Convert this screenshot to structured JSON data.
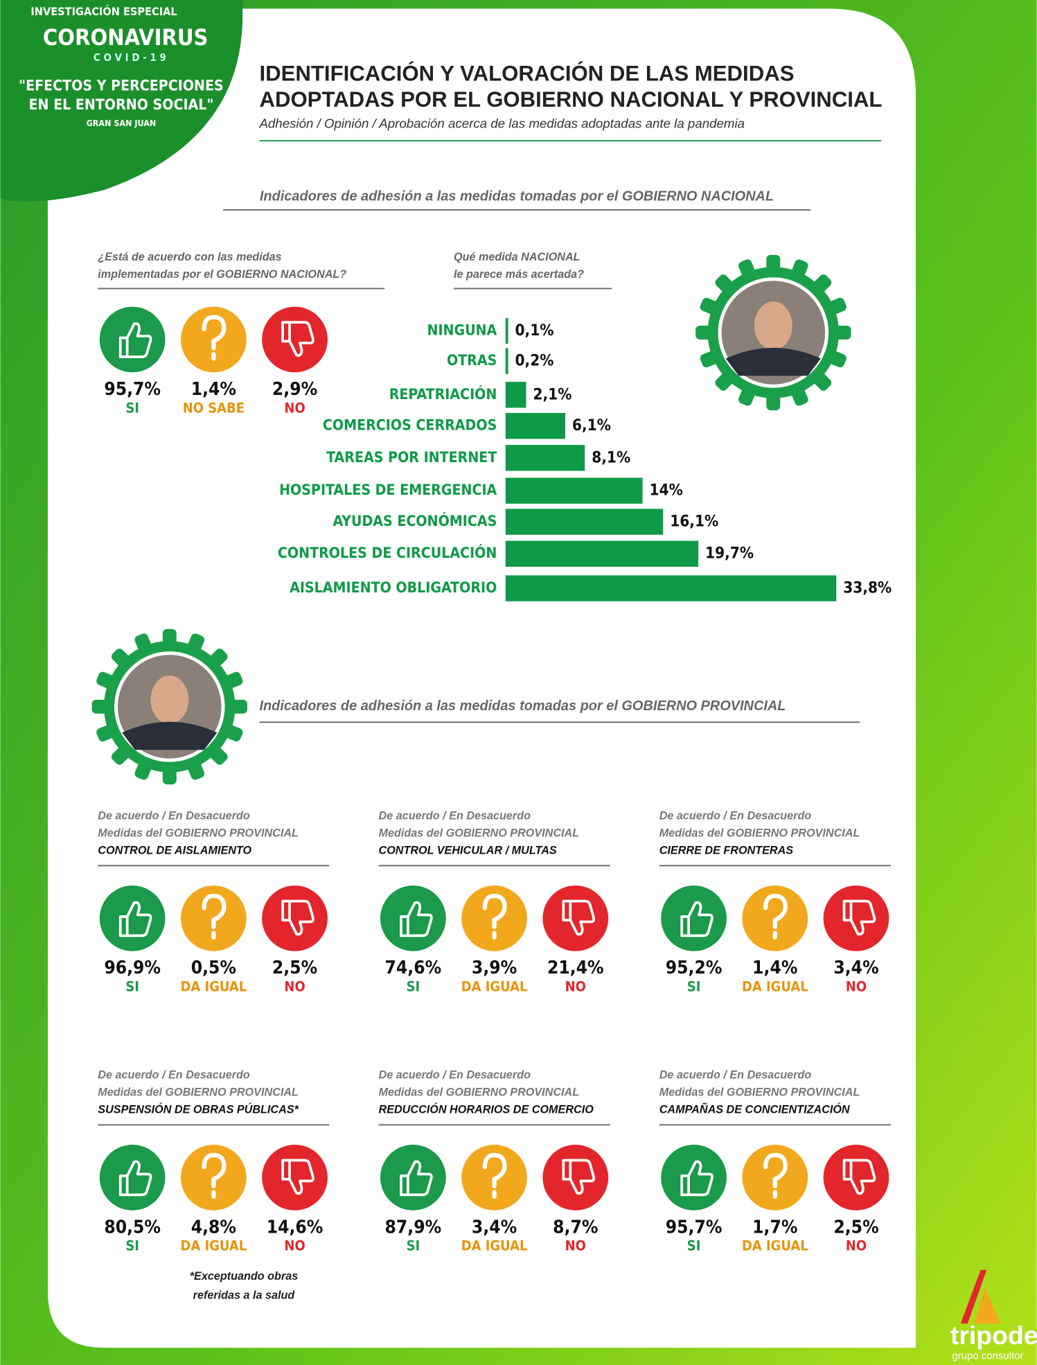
{
  "header": {
    "badge": [
      "INVESTIGACIÓN ESPECIAL",
      "CORONAVIRUS",
      "C O V I D - 1 9",
      "\"EFECTOS Y PERCEPCIONES",
      "EN EL ENTORNO SOCIAL\"",
      "GRAN SAN JUAN"
    ],
    "title": [
      "IDENTIFICACIÓN Y VALORACIÓN DE LAS MEDIDAS",
      "ADOPTADAS POR EL GOBIERNO NACIONAL Y PROVINCIAL"
    ],
    "subtitle": "Adhesión / Opinión / Aprobación acerca de las medidas adoptadas ante  la pandemia"
  },
  "national": {
    "heading": "Indicadores de adhesión a las medidas tomadas por el GOBIERNO NACIONAL",
    "poll": {
      "question": [
        "¿Está de acuerdo con las medidas",
        "implementadas por el GOBIERNO NACIONAL?"
      ],
      "answers": [
        {
          "value": "95,7%",
          "label": "SI"
        },
        {
          "value": "1,4%",
          "label": "NO SABE"
        },
        {
          "value": "2,9%",
          "label": "NO"
        }
      ]
    }
  },
  "chart_data": {
    "type": "bar",
    "orientation": "horizontal",
    "title": [
      "Qué medida NACIONAL",
      "le parece más acertada?"
    ],
    "categories": [
      "NINGUNA",
      "OTRAS",
      "REPATRIACIÓN",
      "COMERCIOS CERRADOS",
      "TAREAS POR INTERNET",
      "HOSPITALES DE EMERGENCIA",
      "AYUDAS ECONÓMICAS",
      "CONTROLES DE CIRCULACIÓN",
      "AISLAMIENTO OBLIGATORIO"
    ],
    "values": [
      0.1,
      0.2,
      2.1,
      6.1,
      8.1,
      14,
      16.1,
      19.7,
      33.8
    ],
    "value_labels": [
      "0,1%",
      "0,2%",
      "2,1%",
      "6,1%",
      "8,1%",
      "14%",
      "16,1%",
      "19,7%",
      "33,8%"
    ],
    "color": "#0e9a47"
  },
  "provincial": {
    "heading": "Indicadores de adhesión a las medidas tomadas por el GOBIERNO PROVINCIAL",
    "polls": [
      {
        "intro": [
          "De acuerdo / En Desacuerdo",
          "Medidas del GOBIERNO PROVINCIAL"
        ],
        "measure": "CONTROL DE AISLAMIENTO",
        "answers": [
          {
            "value": "96,9%",
            "label": "SI"
          },
          {
            "value": "0,5%",
            "label": "DA IGUAL"
          },
          {
            "value": "2,5%",
            "label": "NO"
          }
        ]
      },
      {
        "intro": [
          "De acuerdo / En Desacuerdo",
          "Medidas del GOBIERNO PROVINCIAL"
        ],
        "measure": "CONTROL VEHICULAR / MULTAS",
        "answers": [
          {
            "value": "74,6%",
            "label": "SI"
          },
          {
            "value": "3,9%",
            "label": "DA IGUAL"
          },
          {
            "value": "21,4%",
            "label": "NO"
          }
        ]
      },
      {
        "intro": [
          "De acuerdo / En Desacuerdo",
          "Medidas del GOBIERNO PROVINCIAL"
        ],
        "measure": "CIERRE DE FRONTERAS",
        "answers": [
          {
            "value": "95,2%",
            "label": "SI"
          },
          {
            "value": "1,4%",
            "label": "DA IGUAL"
          },
          {
            "value": "3,4%",
            "label": "NO"
          }
        ]
      },
      {
        "intro": [
          "De acuerdo / En Desacuerdo",
          "Medidas del GOBIERNO PROVINCIAL"
        ],
        "measure": "SUSPENSIÓN DE OBRAS PÚBLICAS*",
        "answers": [
          {
            "value": "80,5%",
            "label": "SI"
          },
          {
            "value": "4,8%",
            "label": "DA IGUAL"
          },
          {
            "value": "14,6%",
            "label": "NO"
          }
        ]
      },
      {
        "intro": [
          "De acuerdo / En Desacuerdo",
          "Medidas del GOBIERNO PROVINCIAL"
        ],
        "measure": "REDUCCIÓN HORARIOS DE COMERCIO",
        "answers": [
          {
            "value": "87,9%",
            "label": "SI"
          },
          {
            "value": "3,4%",
            "label": "DA IGUAL"
          },
          {
            "value": "8,7%",
            "label": "NO"
          }
        ]
      },
      {
        "intro": [
          "De acuerdo / En Desacuerdo",
          "Medidas del GOBIERNO PROVINCIAL"
        ],
        "measure": "CAMPAÑAS DE CONCIENTIZACIÓN",
        "answers": [
          {
            "value": "95,7%",
            "label": "SI"
          },
          {
            "value": "1,7%",
            "label": "DA IGUAL"
          },
          {
            "value": "2,5%",
            "label": "NO"
          }
        ]
      }
    ],
    "footnote": [
      "*Exceptuando obras",
      "referidas a la salud"
    ]
  },
  "footer": {
    "brand": "tripode",
    "tagline": "grupo consultor"
  }
}
